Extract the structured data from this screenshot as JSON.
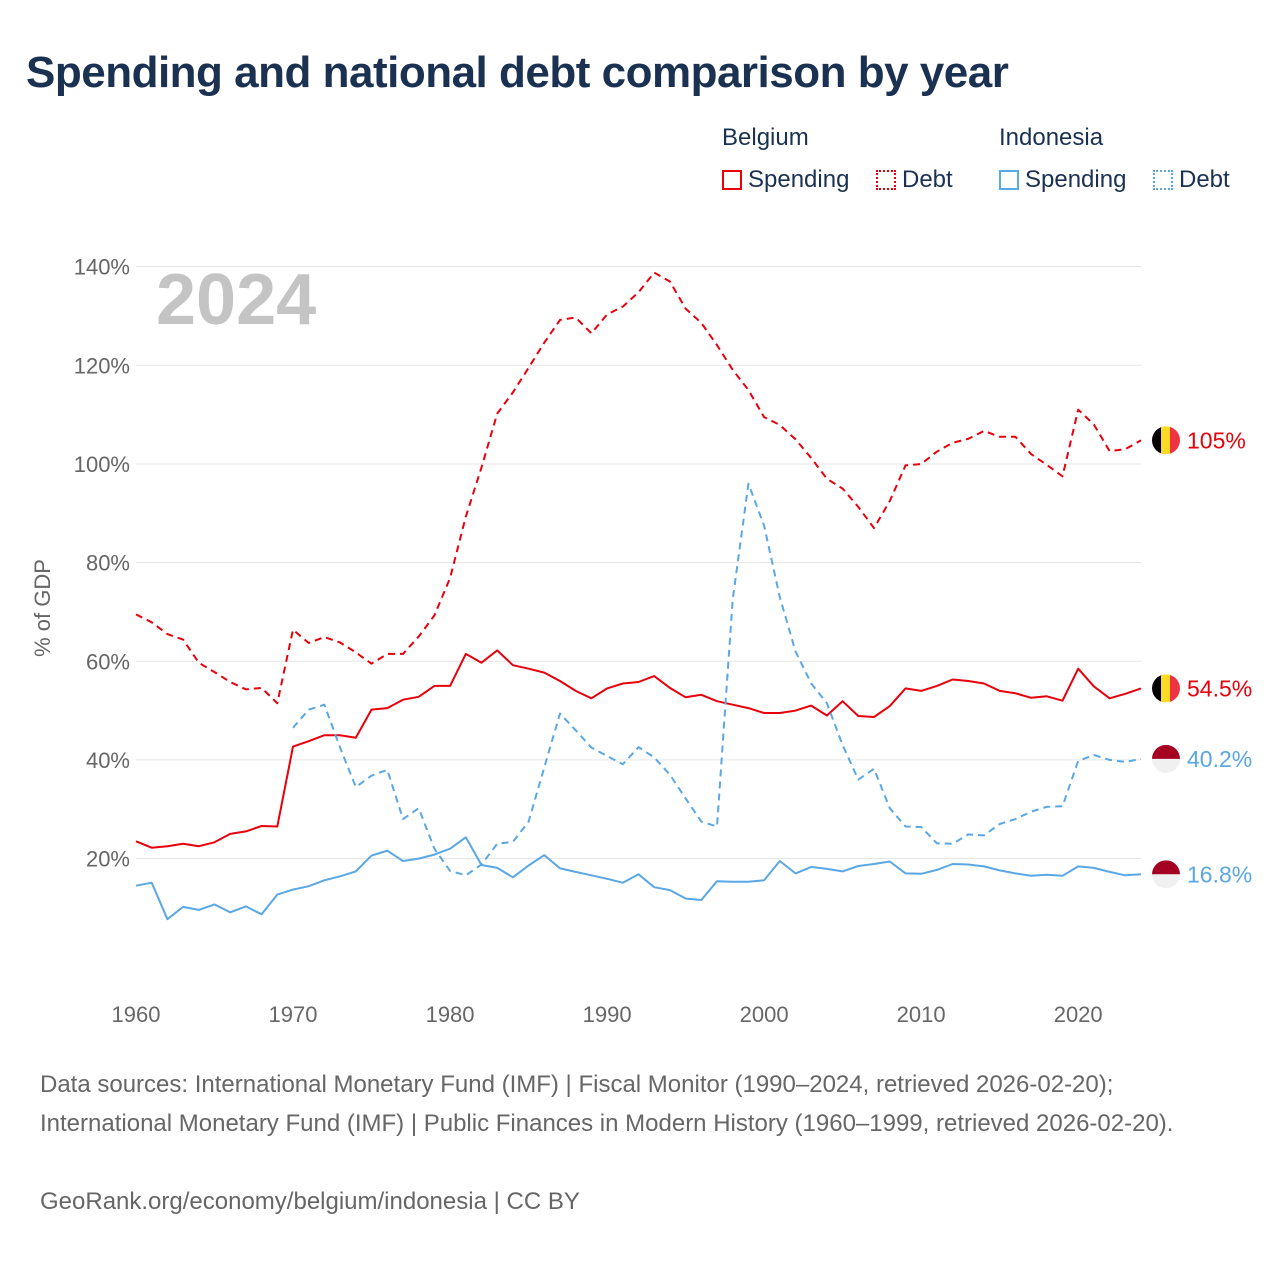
{
  "title": "Spending and national debt comparison by year",
  "legend": {
    "groups": [
      {
        "name": "Belgium",
        "items": [
          {
            "label": "Spending"
          },
          {
            "label": "Debt"
          }
        ]
      },
      {
        "name": "Indonesia",
        "items": [
          {
            "label": "Spending"
          },
          {
            "label": "Debt"
          }
        ]
      }
    ]
  },
  "footer": {
    "sources": "Data sources: International Monetary Fund (IMF) | Fiscal Monitor (1990–2024, retrieved 2026-02-20); International Monetary Fund (IMF) | Public Finances in Modern History (1960–1999, retrieved 2026-02-20).",
    "credit": "GeoRank.org/economy/belgium/indonesia | CC BY"
  },
  "colors": {
    "belgium": "#e8000b",
    "indonesia": "#5aa7e6",
    "grid": "#e6e6e6",
    "axis_text": "#666666",
    "watermark": "#c4c4c4"
  },
  "chart_data": {
    "type": "line",
    "year_label": "2024",
    "ylabel": "% of GDP",
    "xlim": [
      1960,
      2024
    ],
    "ylim": [
      -3,
      145
    ],
    "xticks": [
      1960,
      1970,
      1980,
      1990,
      2000,
      2010,
      2020
    ],
    "xtick_labels": [
      "1960",
      "1970",
      "1980",
      "1990",
      "2000",
      "2010",
      "2020"
    ],
    "yticks": [
      20,
      40,
      60,
      80,
      100,
      120,
      140
    ],
    "ytick_labels": [
      "20%",
      "40%",
      "60%",
      "80%",
      "100%",
      "120%",
      "140%"
    ],
    "series": [
      {
        "name": "Belgium Spending",
        "country": "Belgium",
        "metric": "Spending",
        "style": "solid",
        "color": "#e8000b",
        "end_label": "54.5%",
        "start_year": 1960,
        "values": [
          23.5,
          22.2,
          22.5,
          23.0,
          22.5,
          23.3,
          25.0,
          25.5,
          26.6,
          26.5,
          42.7,
          43.8,
          45.0,
          45.0,
          44.5,
          50.2,
          50.5,
          52.2,
          52.8,
          55.0,
          55.0,
          61.5,
          59.7,
          62.2,
          59.2,
          58.5,
          57.7,
          56.0,
          54.0,
          52.5,
          54.5,
          55.5,
          55.8,
          57.0,
          54.6,
          52.7,
          53.2,
          51.9,
          51.2,
          50.5,
          49.5,
          49.5,
          50.0,
          51.0,
          49.0,
          51.9,
          48.9,
          48.7,
          50.9,
          54.5,
          54.0,
          55.0,
          56.3,
          56.0,
          55.5,
          54.0,
          53.5,
          52.6,
          52.9,
          52.0,
          58.5,
          54.9,
          52.5,
          53.4,
          54.5
        ]
      },
      {
        "name": "Belgium Debt",
        "country": "Belgium",
        "metric": "Debt",
        "style": "dashed",
        "color": "#e8000b",
        "end_label": "105%",
        "start_year": 1960,
        "values": [
          69.5,
          67.9,
          65.5,
          64.4,
          59.7,
          57.8,
          55.8,
          54.3,
          54.6,
          51.5,
          66.4,
          63.7,
          64.9,
          63.8,
          61.8,
          59.5,
          61.5,
          61.5,
          65.0,
          69.3,
          76.9,
          89.3,
          99.3,
          110.2,
          114.5,
          119.5,
          124.6,
          129.2,
          129.7,
          126.5,
          130.3,
          131.9,
          134.8,
          138.8,
          137.0,
          131.5,
          128.6,
          124.1,
          119.1,
          115.0,
          109.5,
          107.9,
          105.0,
          101.2,
          97.0,
          95.0,
          91.3,
          87.0,
          92.5,
          99.7,
          100.0,
          102.5,
          104.3,
          105.1,
          106.7,
          105.5,
          105.5,
          102.0,
          99.8,
          97.5,
          111.0,
          108.0,
          102.6,
          103.0,
          104.8
        ]
      },
      {
        "name": "Indonesia Spending",
        "country": "Indonesia",
        "metric": "Spending",
        "style": "solid",
        "color": "#5aa7e6",
        "end_label": "16.8%",
        "start_year": 1960,
        "values": [
          14.5,
          15.1,
          7.7,
          10.2,
          9.6,
          10.7,
          9.1,
          10.3,
          8.7,
          12.7,
          13.7,
          14.4,
          15.6,
          16.4,
          17.4,
          20.6,
          21.6,
          19.5,
          20.0,
          20.8,
          22.0,
          24.3,
          18.7,
          18.1,
          16.2,
          18.6,
          20.7,
          18.0,
          17.3,
          16.6,
          15.9,
          15.1,
          16.8,
          14.2,
          13.6,
          11.9,
          11.6,
          15.4,
          15.3,
          15.3,
          15.6,
          19.5,
          17.0,
          18.3,
          17.9,
          17.4,
          18.5,
          18.9,
          19.4,
          17.0,
          16.9,
          17.7,
          18.9,
          18.8,
          18.4,
          17.6,
          17.0,
          16.5,
          16.7,
          16.5,
          18.4,
          18.1,
          17.3,
          16.6,
          16.8
        ]
      },
      {
        "name": "Indonesia Debt",
        "country": "Indonesia",
        "metric": "Debt",
        "style": "dashed",
        "color": "#5aa7e6",
        "end_label": "40.2%",
        "start_year": 1970,
        "values": [
          46.5,
          50.2,
          51.2,
          42.5,
          34.5,
          36.8,
          38.0,
          28.0,
          30.2,
          22.0,
          17.5,
          16.6,
          18.8,
          23.0,
          23.4,
          27.5,
          38.5,
          49.4,
          46.0,
          42.5,
          40.8,
          39.1,
          42.6,
          40.5,
          37.0,
          32.2,
          27.5,
          26.5,
          72.5,
          96.0,
          87.5,
          73.0,
          62.0,
          55.5,
          51.5,
          43.0,
          36.0,
          38.2,
          30.2,
          26.5,
          26.4,
          23.1,
          23.0,
          24.9,
          24.7,
          27.0,
          28.0,
          29.5,
          30.5,
          30.6,
          39.8,
          41.0,
          40.0,
          39.6,
          40.2
        ]
      }
    ]
  }
}
